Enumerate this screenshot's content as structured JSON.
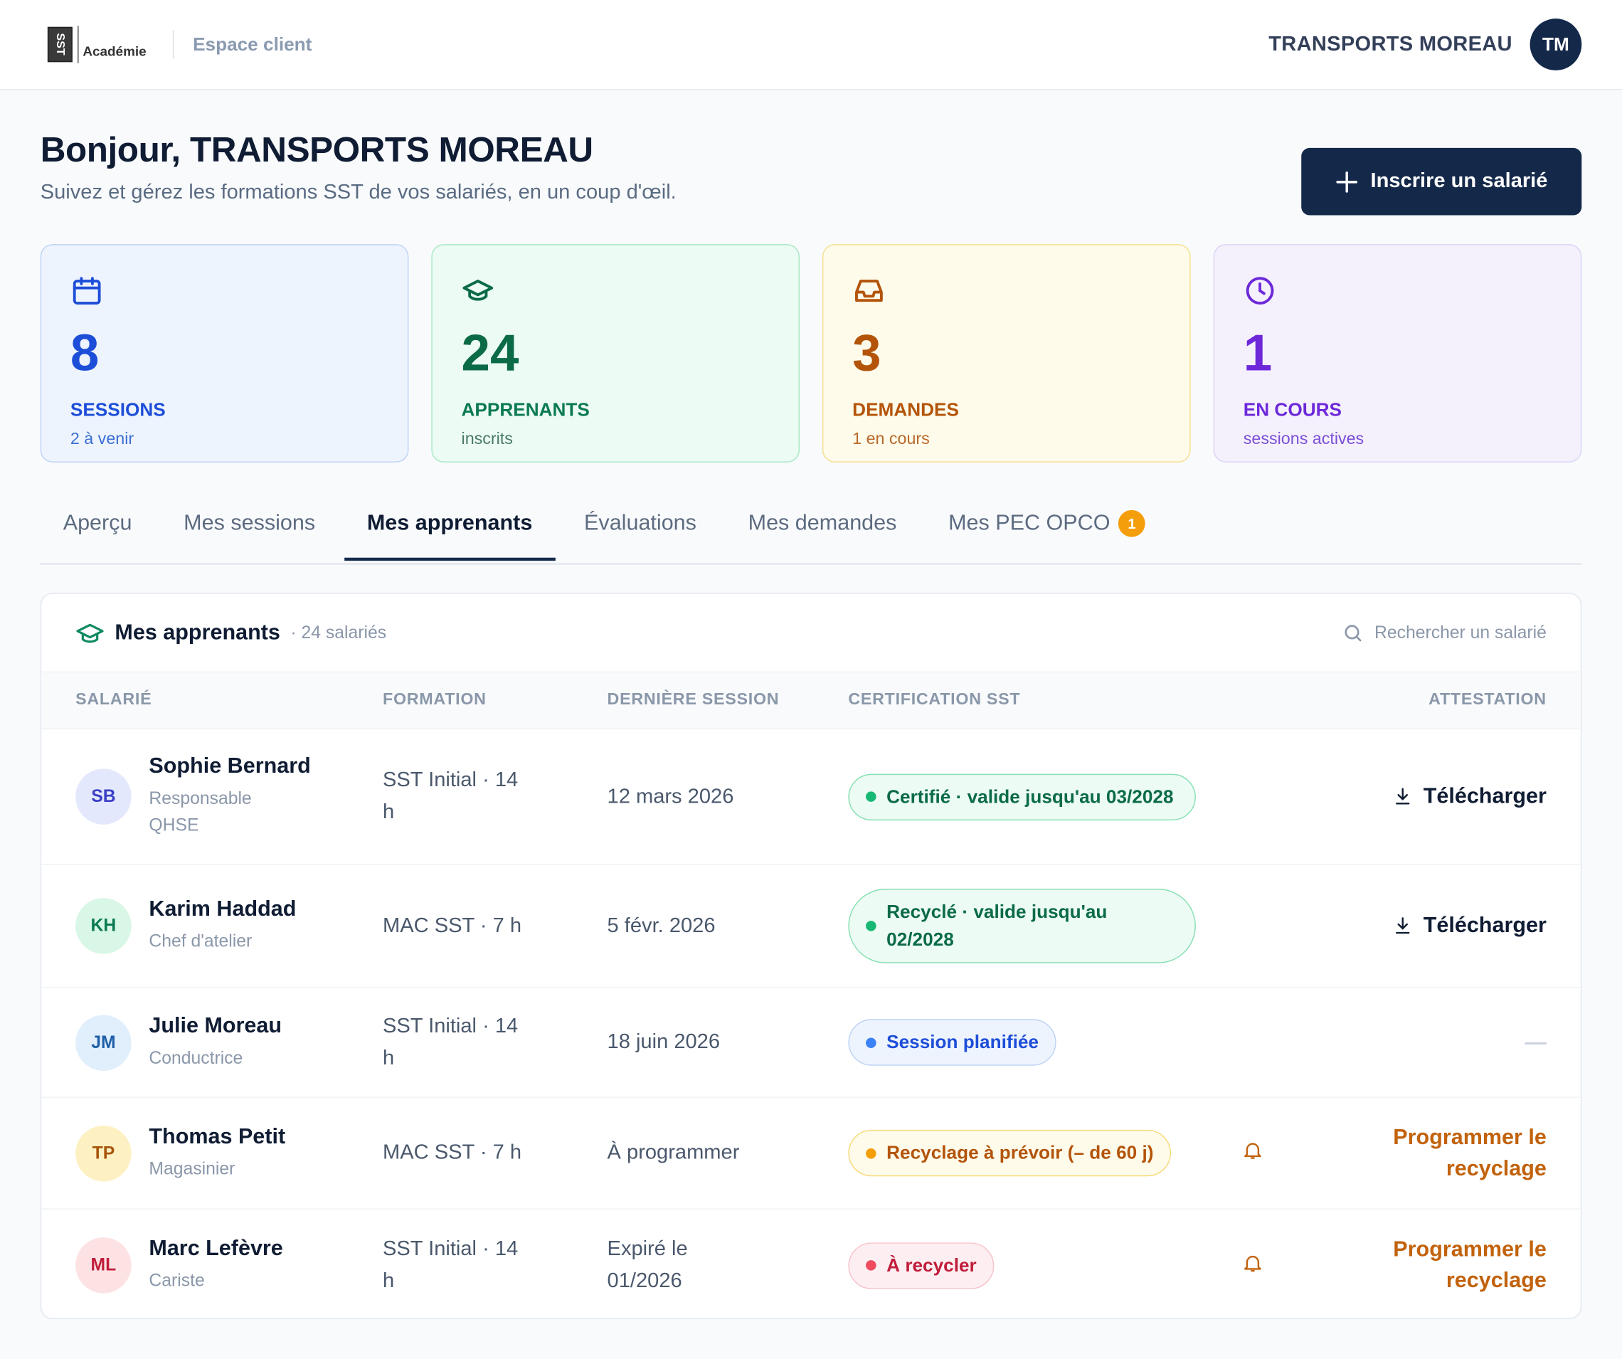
{
  "header": {
    "logo_text": "SST",
    "brand": "Académie",
    "section": "Espace client",
    "company": "TRANSPORTS MOREAU",
    "avatar": "TM"
  },
  "greeting": {
    "title": "Bonjour, TRANSPORTS MOREAU",
    "subtitle": "Suivez et gérez les formations SST de vos salariés, en un coup d'œil.",
    "button": "Inscrire un salarié"
  },
  "stats": [
    {
      "value": 8,
      "label": "SESSIONS",
      "sub": "2 à venir",
      "color": "blue"
    },
    {
      "value": 24,
      "label": "APPRENANTS",
      "sub": "inscrits",
      "color": "green"
    },
    {
      "value": 3,
      "label": "DEMANDES",
      "sub": "1 en cours",
      "color": "amber"
    },
    {
      "value": 1,
      "label": "EN COURS",
      "sub": "sessions actives",
      "color": "violet"
    }
  ],
  "tabs": [
    {
      "label": "Aperçu"
    },
    {
      "label": "Mes sessions"
    },
    {
      "label": "Mes apprenants"
    },
    {
      "label": "Évaluations"
    },
    {
      "label": "Mes demandes"
    },
    {
      "label": "Mes PEC OPCO",
      "badge": 1
    }
  ],
  "panel": {
    "title": "Mes apprenants",
    "count": "· 24 salariés",
    "search": "Rechercher un salarié",
    "columns": [
      "SALARIÉ",
      "FORMATION",
      "DERNIÈRE SESSION",
      "CERTIFICATION SST",
      "ATTESTATION"
    ],
    "rows": [
      {
        "initials": "SB",
        "name": "Sophie Bernard",
        "role": "Responsable QHSE",
        "formation": "SST Initial · 14 h",
        "last_session": "12 mars 2026",
        "status": "Certifié · valide jusqu'au 03/2028",
        "tone": "green",
        "avatar_color": "indigo",
        "attestation": "Télécharger"
      },
      {
        "initials": "KH",
        "name": "Karim Haddad",
        "role": "Chef d'atelier",
        "formation": "MAC SST · 7 h",
        "last_session": "5 févr. 2026",
        "status": "Recyclé · valide jusqu'au 02/2028",
        "tone": "green",
        "avatar_color": "green",
        "attestation": "Télécharger"
      },
      {
        "initials": "JM",
        "name": "Julie Moreau",
        "role": "Conductrice",
        "formation": "SST Initial · 14 h",
        "last_session": "18 juin 2026",
        "status": "Session planifiée",
        "tone": "blue",
        "avatar_color": "blue",
        "attestation": "—"
      },
      {
        "initials": "TP",
        "name": "Thomas Petit",
        "role": "Magasinier",
        "formation": "MAC SST · 7 h",
        "last_session": "À programmer",
        "status": "Recyclage à prévoir (– de 60 j)",
        "tone": "amber",
        "avatar_color": "amber",
        "attestation": "Programmer le recyclage"
      },
      {
        "initials": "ML",
        "name": "Marc Lefèvre",
        "role": "Cariste",
        "formation": "SST Initial · 14 h",
        "last_session": "Expiré le 01/2026",
        "status": "À recycler",
        "tone": "red",
        "avatar_color": "red",
        "attestation": "Programmer le recyclage"
      }
    ]
  }
}
